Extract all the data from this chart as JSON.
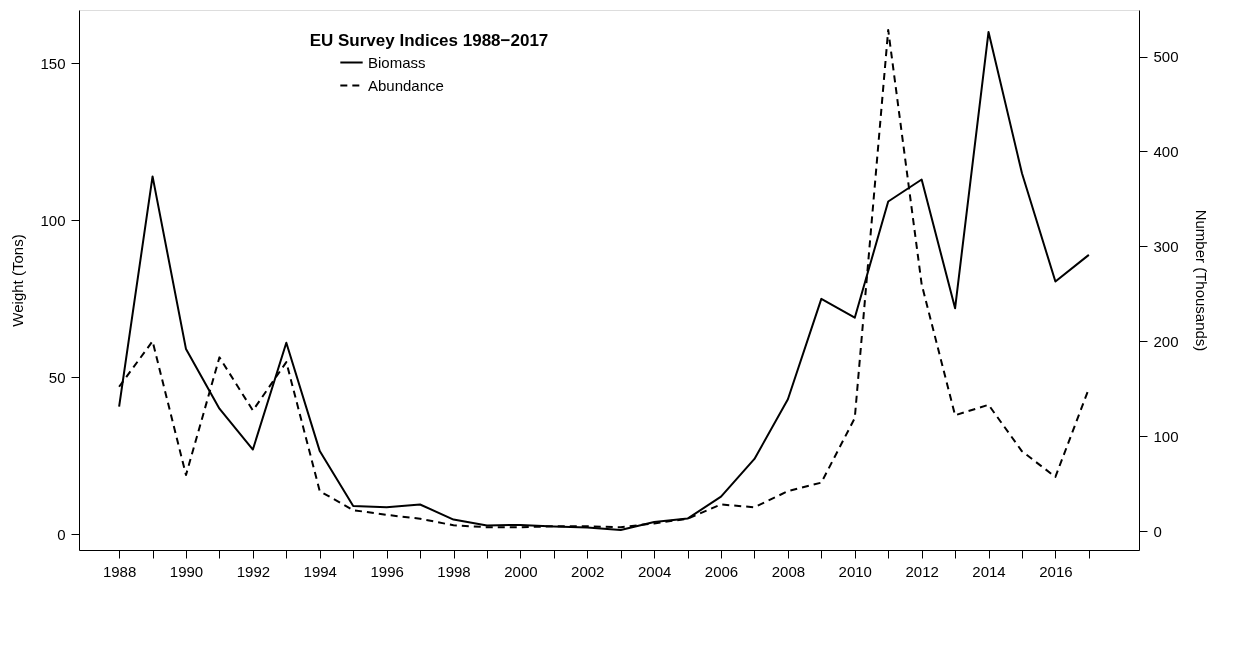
{
  "chart_data": {
    "type": "line",
    "title": "EU Survey Indices 1988−2017",
    "ylabel": "Weight (Tons)",
    "y2label": "Number (Thousands)",
    "x": [
      1988,
      1989,
      1990,
      1991,
      1992,
      1993,
      1994,
      1995,
      1996,
      1997,
      1998,
      1999,
      2000,
      2001,
      2002,
      2003,
      2004,
      2005,
      2006,
      2007,
      2008,
      2009,
      2010,
      2011,
      2012,
      2013,
      2014,
      2015,
      2016,
      2017
    ],
    "series": [
      {
        "name": "Biomass",
        "color": "#000000",
        "line_style": "solid",
        "values": [
          40.7,
          114,
          59,
          40,
          27,
          61,
          26.5,
          9,
          8.6,
          9.5,
          4.7,
          2.8,
          3,
          2.5,
          2.2,
          1.4,
          3.9,
          5,
          12,
          24,
          43,
          75,
          69,
          106,
          113,
          72,
          160,
          115,
          80.5,
          89
        ]
      },
      {
        "name": "Abundance",
        "color": "#000000",
        "line_style": "dashed",
        "axis": "y2",
        "values": [
          152,
          200,
          59,
          183,
          127,
          178,
          42,
          22,
          17,
          13,
          6,
          4,
          4,
          5,
          5,
          4,
          8,
          13,
          28,
          25,
          42,
          51,
          119,
          528,
          260,
          122,
          133,
          84,
          57,
          150
        ]
      }
    ],
    "xlim": [
      1986.8,
      2018.5
    ],
    "xticks": [
      1988,
      {
        "value": 1989,
        "label": null
      },
      1990,
      {
        "value": 1991,
        "label": null
      },
      1992,
      {
        "value": 1993,
        "label": null
      },
      1994,
      {
        "value": 1995,
        "label": null
      },
      1996,
      {
        "value": 1997,
        "label": null
      },
      1998,
      {
        "value": 1999,
        "label": null
      },
      2000,
      {
        "value": 2001,
        "label": null
      },
      2002,
      {
        "value": 2003,
        "label": null
      },
      2004,
      {
        "value": 2005,
        "label": null
      },
      2006,
      {
        "value": 2007,
        "label": null
      },
      2008,
      {
        "value": 2009,
        "label": null
      },
      2010,
      {
        "value": 2011,
        "label": null
      },
      2012,
      {
        "value": 2013,
        "label": null
      },
      2014,
      {
        "value": 2015,
        "label": null
      },
      2016,
      {
        "value": 2017,
        "label": null
      }
    ],
    "ylim": [
      -5,
      167
    ],
    "yticks": [
      0,
      50,
      100,
      150
    ],
    "y2lim": [
      -20,
      549
    ],
    "y2ticks": [
      0,
      100,
      200,
      300,
      400,
      500
    ],
    "grid": false,
    "legend": "top left",
    "marker": "none"
  }
}
